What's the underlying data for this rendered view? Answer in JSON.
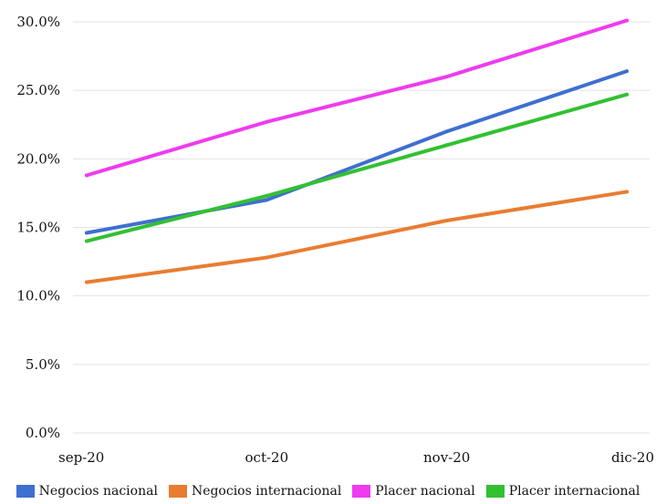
{
  "chart_data": {
    "type": "line",
    "categories": [
      "sep-20",
      "oct-20",
      "nov-20",
      "dic-20"
    ],
    "series": [
      {
        "name": "Negocios nacional",
        "color": "#3f6fcf",
        "values": [
          14.6,
          17.0,
          22.0,
          26.4
        ]
      },
      {
        "name": "Negocios internacional",
        "color": "#e87d32",
        "values": [
          11.0,
          12.8,
          15.5,
          17.6
        ]
      },
      {
        "name": "Placer nacional",
        "color": "#ee3cee",
        "values": [
          18.8,
          22.7,
          26.0,
          30.1
        ]
      },
      {
        "name": "Placer internacional",
        "color": "#32c032",
        "values": [
          14.0,
          17.3,
          21.0,
          24.7
        ]
      }
    ],
    "y_ticks": [
      "0.0%",
      "5.0%",
      "10.0%",
      "15.0%",
      "20.0%",
      "25.0%",
      "30.0%"
    ],
    "ylim": [
      0,
      30
    ],
    "grid": true,
    "legend_position": "bottom"
  }
}
